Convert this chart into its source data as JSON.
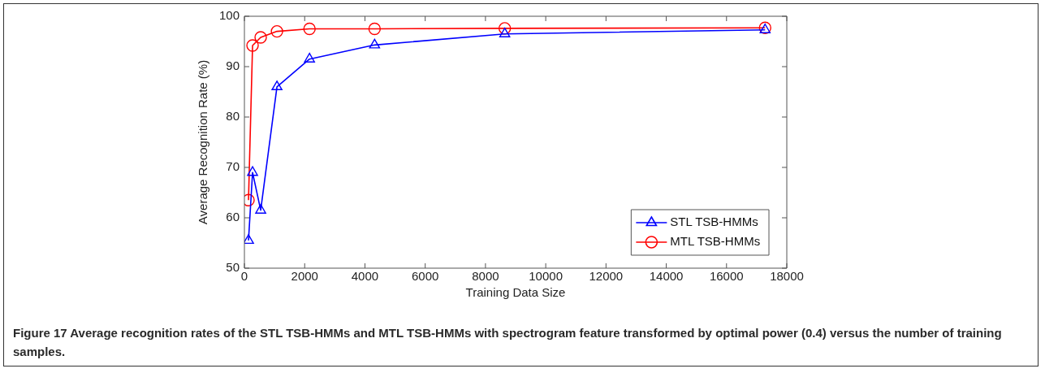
{
  "chart_data": {
    "type": "line",
    "xlabel": "Training Data Size",
    "ylabel": "Average Recognition Rate (%)",
    "xlim": [
      0,
      18000
    ],
    "xticks": [
      0,
      2000,
      4000,
      6000,
      8000,
      10000,
      12000,
      14000,
      16000,
      18000
    ],
    "ylim": [
      50,
      100
    ],
    "yticks": [
      50,
      60,
      70,
      80,
      90,
      100
    ],
    "grid": false,
    "legend": "bottom right",
    "series": [
      {
        "name": "STL TSB-HMMs",
        "color": "#0000ff",
        "marker": "triangle",
        "x": [
          135,
          270,
          540,
          1080,
          2160,
          4320,
          8640,
          17280
        ],
        "values": [
          55.5,
          69,
          61.5,
          86,
          91.5,
          94.3,
          96.5,
          97.3
        ]
      },
      {
        "name": "MTL TSB-HMMs",
        "color": "#ff0000",
        "marker": "circle",
        "x": [
          135,
          270,
          540,
          1080,
          2160,
          4320,
          8640,
          17280
        ],
        "values": [
          63.5,
          94.2,
          95.8,
          97,
          97.5,
          97.5,
          97.6,
          97.7
        ]
      }
    ],
    "annotations": [
      "Figure 17 Average recognition rates of the STL TSB-HMMs and MTL TSB-HMMs with spectrogram feature transformed by optimal power (0.4) versus the number of training samples."
    ]
  }
}
